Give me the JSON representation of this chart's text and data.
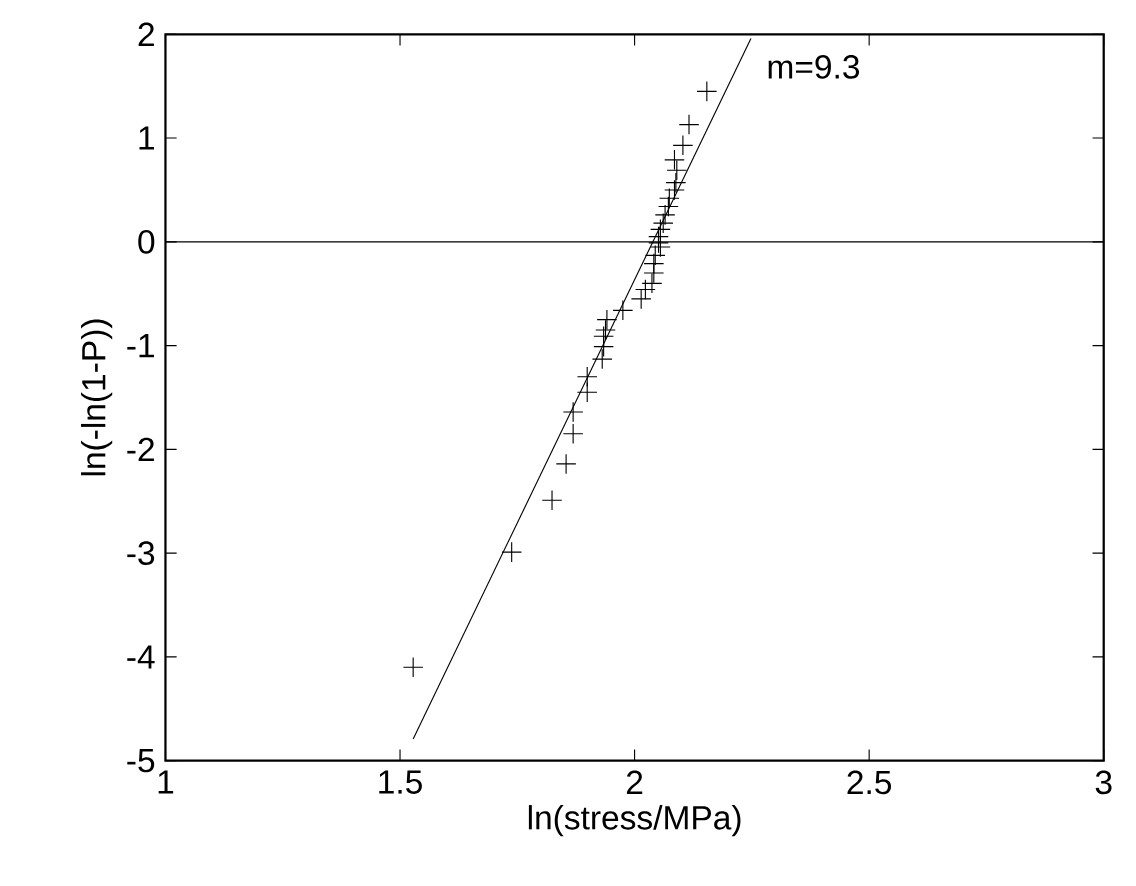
{
  "chart_data": {
    "type": "scatter",
    "xlabel": "ln(stress/MPa)",
    "ylabel": "ln(-ln(1-P))",
    "xlim": [
      1,
      3
    ],
    "ylim": [
      -5,
      2
    ],
    "xticks": [
      1,
      1.5,
      2,
      2.5,
      3
    ],
    "yticks": [
      -5,
      -4,
      -3,
      -2,
      -1,
      0,
      1,
      2
    ],
    "marker": "cross",
    "grid": false,
    "series": [
      {
        "color": "#000000",
        "x": [
          1.528,
          1.738,
          1.824,
          1.854,
          1.869,
          1.869,
          1.899,
          1.899,
          1.931,
          1.934,
          1.934,
          1.938,
          1.941,
          1.975,
          2.014,
          2.023,
          2.037,
          2.041,
          2.041,
          2.044,
          2.055,
          2.051,
          2.051,
          2.055,
          2.061,
          2.065,
          2.072,
          2.074,
          2.085,
          2.088,
          2.09,
          2.085,
          2.103,
          2.116,
          2.154
        ],
        "values": [
          -4.1,
          -2.99,
          -2.49,
          -2.14,
          -1.85,
          -1.64,
          -1.45,
          -1.3,
          -1.13,
          -1.01,
          -0.91,
          -0.85,
          -0.75,
          -0.66,
          -0.55,
          -0.46,
          -0.4,
          -0.3,
          -0.21,
          -0.13,
          -0.05,
          -0.01,
          0.05,
          0.12,
          0.18,
          0.26,
          0.34,
          0.42,
          0.5,
          0.57,
          0.69,
          0.79,
          0.93,
          1.13,
          1.45
        ]
      },
      {
        "type": "line",
        "color": "#000000",
        "marker": "none",
        "line_style": "solid",
        "x": [
          1.528,
          2.248
        ],
        "values": [
          -4.79,
          1.96
        ]
      }
    ],
    "ref_lines": [
      {
        "axis": "y",
        "value": 0,
        "color": "#000000",
        "line_style": "solid"
      }
    ],
    "annotations": [
      "m=9.3"
    ]
  }
}
